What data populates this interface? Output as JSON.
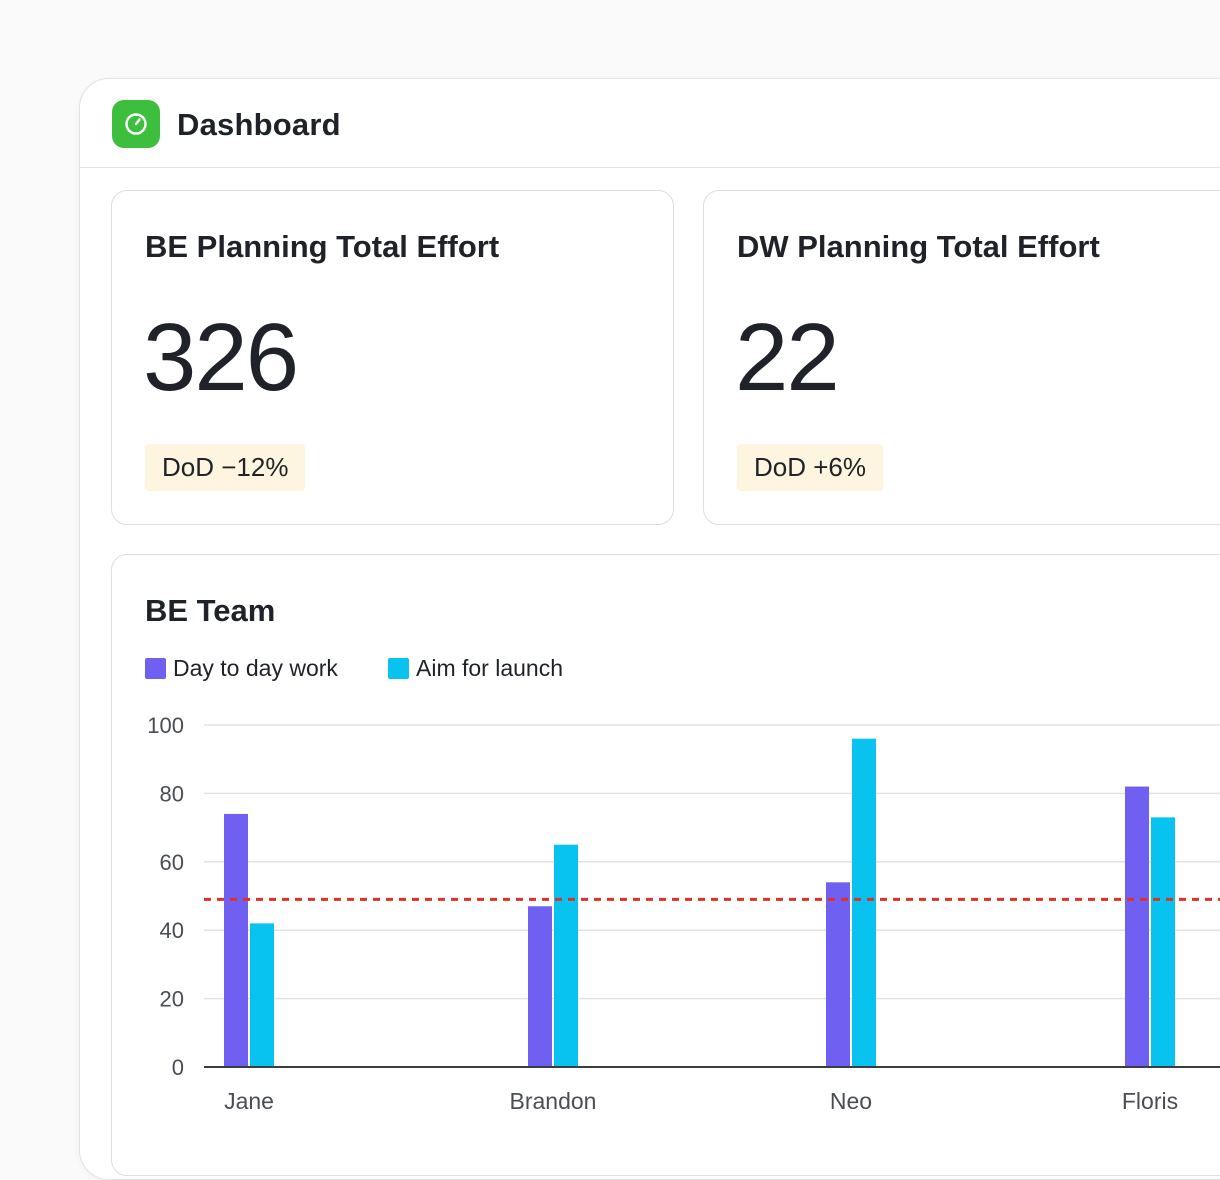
{
  "header": {
    "title": "Dashboard",
    "icon": "timer-icon"
  },
  "cards": [
    {
      "title": "BE Planning Total Effort",
      "value": "326",
      "delta": "DoD −12%"
    },
    {
      "title": "DW Planning Total Effort",
      "value": "22",
      "delta": "DoD +6%"
    }
  ],
  "colors": {
    "accent": "#3cbf3c",
    "series1": "#7060f2",
    "series2": "#08c3f0",
    "threshold": "#e0302a",
    "badge_bg": "#fdf5df"
  },
  "chart_data": {
    "type": "bar",
    "title": "BE Team",
    "categories": [
      "Jane",
      "Brandon",
      "Neo",
      "Floris"
    ],
    "series": [
      {
        "name": "Day to day work",
        "values": [
          74,
          47,
          54,
          82
        ]
      },
      {
        "name": "Aim for launch",
        "values": [
          42,
          65,
          96,
          73
        ]
      }
    ],
    "threshold": 49,
    "ylim": [
      0,
      100
    ],
    "yticks": [
      0,
      20,
      40,
      60,
      80,
      100
    ],
    "grid": true,
    "legend": "top-left",
    "xlabel": "",
    "ylabel": ""
  }
}
